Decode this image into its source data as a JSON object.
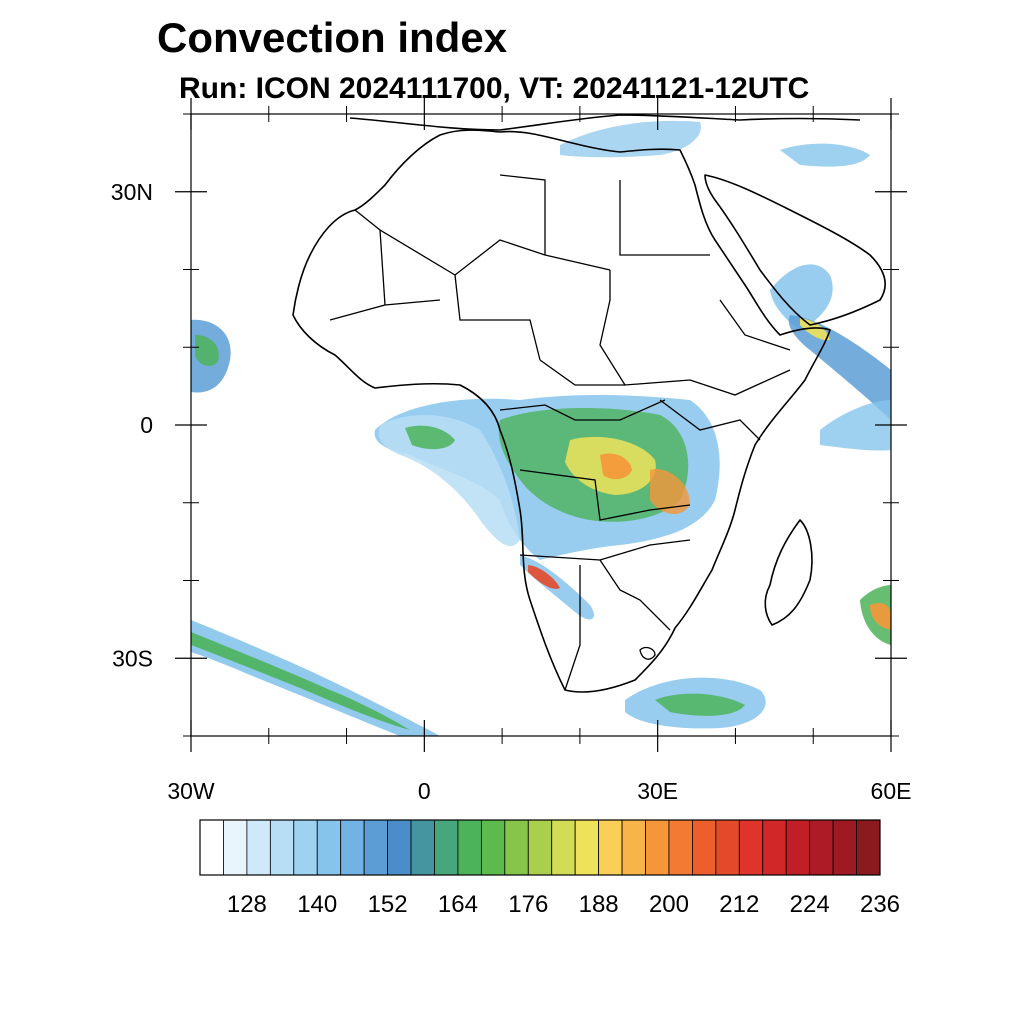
{
  "title": "Convection index",
  "subtitle": "Run: ICON 2024111700,  VT: 20241121-12UTC",
  "map": {
    "lon_range": [
      -30,
      60
    ],
    "lat_range": [
      -40,
      40
    ],
    "lat_ticks": [
      {
        "value": 30,
        "label": "30N"
      },
      {
        "value": 0,
        "label": "0"
      },
      {
        "value": -30,
        "label": "30S"
      }
    ],
    "lon_ticks": [
      {
        "value": -30,
        "label": "30W"
      },
      {
        "value": 0,
        "label": "0"
      },
      {
        "value": 30,
        "label": "30E"
      },
      {
        "value": 60,
        "label": "60E"
      }
    ],
    "minor_lat_ticks": [
      40,
      20,
      10,
      -10,
      -20,
      -40
    ],
    "minor_lon_ticks": [
      -20,
      -10,
      10,
      20,
      40,
      50
    ]
  },
  "colorbar": {
    "colors": [
      "#ffffff",
      "#e9f5fc",
      "#cfe9f8",
      "#b7def5",
      "#9dd2f1",
      "#86c4ec",
      "#73b3e3",
      "#5c9dd6",
      "#4a8dc8",
      "#4595a1",
      "#47a67c",
      "#4cb35a",
      "#5dba4c",
      "#86c44a",
      "#a9cf4d",
      "#d2dc54",
      "#eee25a",
      "#f9cf58",
      "#f8b349",
      "#f6963a",
      "#f27a33",
      "#ec5f2d",
      "#e44a2a",
      "#de3429",
      "#d12729",
      "#c21e28",
      "#ad1b26",
      "#9d1a22",
      "#8a1a1d"
    ],
    "labels": [
      "128",
      "140",
      "152",
      "164",
      "176",
      "188",
      "200",
      "212",
      "224",
      "236"
    ]
  }
}
